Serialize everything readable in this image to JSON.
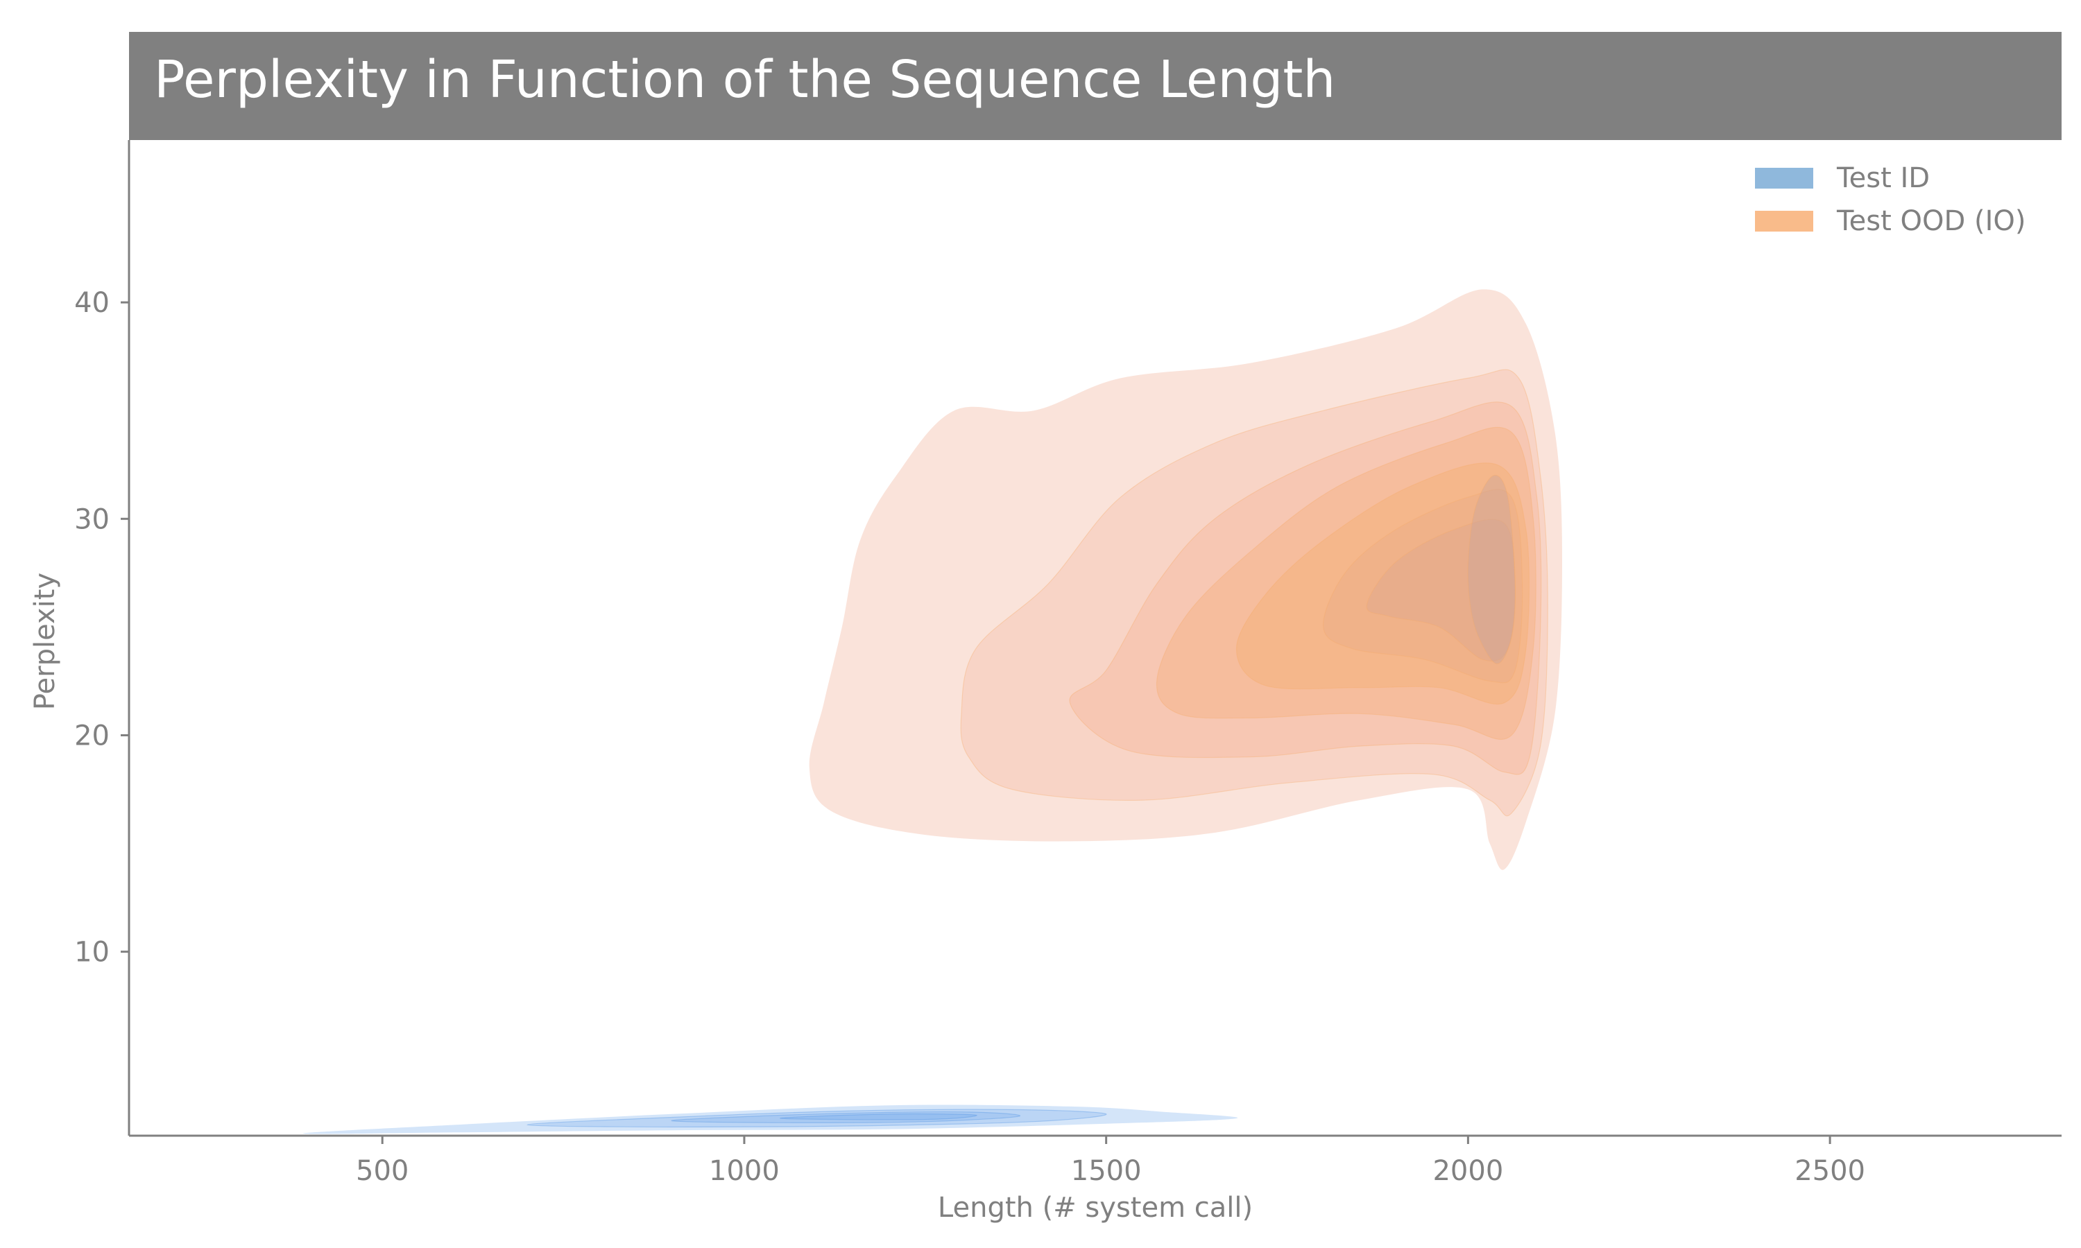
{
  "chart_data": {
    "type": "kde_contour",
    "title": "Perplexity in Function of the Sequence Length",
    "xlabel": "Length (# system call)",
    "ylabel": "Perplexity",
    "xlim": [
      150,
      2820
    ],
    "ylim": [
      1.5,
      47.5
    ],
    "x_ticks": [
      500,
      1000,
      1500,
      2000,
      2500
    ],
    "y_ticks": [
      10,
      20,
      30,
      40
    ],
    "grid": false,
    "legend_position": "top-right",
    "series": [
      {
        "name": "Test ID",
        "color": "#4a90e2",
        "fill": "#6fa8ea",
        "levels": [
          {
            "opacity": 0.3,
            "points": [
              [
                390,
                1.6
              ],
              [
                600,
                2.0
              ],
              [
                900,
                2.5
              ],
              [
                1200,
                2.9
              ],
              [
                1450,
                2.85
              ],
              [
                1580,
                2.6
              ],
              [
                1680,
                2.3
              ],
              [
                1500,
                2.05
              ],
              [
                1200,
                1.8
              ],
              [
                900,
                1.75
              ],
              [
                600,
                1.65
              ]
            ]
          },
          {
            "opacity": 0.25,
            "points": [
              [
                700,
                2.0
              ],
              [
                900,
                2.35
              ],
              [
                1150,
                2.65
              ],
              [
                1380,
                2.7
              ],
              [
                1500,
                2.5
              ],
              [
                1400,
                2.15
              ],
              [
                1150,
                1.95
              ],
              [
                900,
                1.9
              ]
            ]
          },
          {
            "opacity": 0.25,
            "points": [
              [
                900,
                2.2
              ],
              [
                1100,
                2.5
              ],
              [
                1300,
                2.6
              ],
              [
                1380,
                2.4
              ],
              [
                1250,
                2.15
              ],
              [
                1050,
                2.1
              ]
            ]
          },
          {
            "opacity": 0.3,
            "points": [
              [
                1050,
                2.3
              ],
              [
                1200,
                2.5
              ],
              [
                1320,
                2.45
              ],
              [
                1250,
                2.25
              ]
            ]
          }
        ]
      },
      {
        "name": "Test OOD (IO)",
        "color": "#f6ad6b",
        "fill": "#f4a07a",
        "levels": [
          {
            "opacity": 0.45,
            "color": "#f3c0ad",
            "points": [
              [
                1090,
                18.5
              ],
              [
                1110,
                21.5
              ],
              [
                1135,
                25
              ],
              [
                1160,
                29
              ],
              [
                1210,
                32
              ],
              [
                1290,
                35
              ],
              [
                1400,
                35
              ],
              [
                1520,
                36.5
              ],
              [
                1700,
                37.2
              ],
              [
                1900,
                38.8
              ],
              [
                2020,
                40.6
              ],
              [
                2080,
                39
              ],
              [
                2120,
                34
              ],
              [
                2130,
                28
              ],
              [
                2120,
                21
              ],
              [
                2080,
                16
              ],
              [
                2050,
                13.8
              ],
              [
                2030,
                15
              ],
              [
                2000,
                17.5
              ],
              [
                1850,
                17
              ],
              [
                1650,
                15.5
              ],
              [
                1450,
                15.1
              ],
              [
                1250,
                15.4
              ],
              [
                1120,
                16.5
              ]
            ]
          },
          {
            "opacity": 0.35,
            "color": "#f3b8a0",
            "points": [
              [
                1300,
                21
              ],
              [
                1320,
                24
              ],
              [
                1420,
                27
              ],
              [
                1520,
                31
              ],
              [
                1650,
                33.5
              ],
              [
                1800,
                35
              ],
              [
                2000,
                36.5
              ],
              [
                2070,
                36.5
              ],
              [
                2100,
                32
              ],
              [
                2110,
                26
              ],
              [
                2100,
                19.5
              ],
              [
                2060,
                16.4
              ],
              [
                2030,
                17
              ],
              [
                1950,
                18.2
              ],
              [
                1750,
                17.8
              ],
              [
                1550,
                17
              ],
              [
                1370,
                17.5
              ],
              [
                1310,
                19
              ]
            ]
          },
          {
            "opacity": 0.35,
            "color": "#f5b08e",
            "points": [
              [
                1450,
                21.5
              ],
              [
                1500,
                23
              ],
              [
                1570,
                27
              ],
              [
                1650,
                30
              ],
              [
                1780,
                32.5
              ],
              [
                1950,
                34.5
              ],
              [
                2060,
                35.2
              ],
              [
                2095,
                31
              ],
              [
                2100,
                25
              ],
              [
                2085,
                19
              ],
              [
                2050,
                18.3
              ],
              [
                1980,
                19.5
              ],
              [
                1850,
                19.5
              ],
              [
                1700,
                19
              ],
              [
                1530,
                19.3
              ]
            ]
          },
          {
            "opacity": 0.4,
            "color": "#f6ae7d",
            "points": [
              [
                1570,
                22.5
              ],
              [
                1610,
                25.5
              ],
              [
                1700,
                28.5
              ],
              [
                1820,
                31.5
              ],
              [
                1970,
                33.5
              ],
              [
                2060,
                34
              ],
              [
                2090,
                30
              ],
              [
                2090,
                24
              ],
              [
                2060,
                20
              ],
              [
                1980,
                20.5
              ],
              [
                1850,
                21
              ],
              [
                1700,
                20.8
              ],
              [
                1600,
                21
              ]
            ]
          },
          {
            "opacity": 0.4,
            "color": "#f5b070",
            "points": [
              [
                1680,
                24
              ],
              [
                1720,
                26.5
              ],
              [
                1800,
                29
              ],
              [
                1920,
                31.5
              ],
              [
                2040,
                32.5
              ],
              [
                2080,
                29.5
              ],
              [
                2080,
                24
              ],
              [
                2050,
                21.5
              ],
              [
                1960,
                22.2
              ],
              [
                1850,
                22.2
              ],
              [
                1720,
                22.3
              ]
            ]
          },
          {
            "opacity": 0.35,
            "color": "#e8a886",
            "points": [
              [
                1800,
                25
              ],
              [
                1830,
                27.5
              ],
              [
                1900,
                29.5
              ],
              [
                2000,
                31
              ],
              [
                2060,
                31
              ],
              [
                2075,
                27
              ],
              [
                2065,
                23
              ],
              [
                2030,
                22.5
              ],
              [
                1940,
                23.5
              ],
              [
                1840,
                24
              ]
            ]
          },
          {
            "opacity": 0.35,
            "color": "#d9a290",
            "points": [
              [
                1860,
                26
              ],
              [
                1900,
                28
              ],
              [
                1980,
                29.5
              ],
              [
                2050,
                29.8
              ],
              [
                2065,
                27
              ],
              [
                2055,
                24
              ],
              [
                2020,
                23.5
              ],
              [
                1960,
                25
              ],
              [
                1890,
                25.5
              ]
            ]
          },
          {
            "opacity": 0.4,
            "color": "#c9a39b",
            "points": [
              [
                2000,
                28
              ],
              [
                2010,
                30.5
              ],
              [
                2035,
                32
              ],
              [
                2055,
                31
              ],
              [
                2065,
                27
              ],
              [
                2060,
                24.5
              ],
              [
                2040,
                23.3
              ],
              [
                2015,
                24.5
              ],
              [
                2003,
                26
              ]
            ]
          }
        ]
      }
    ]
  }
}
